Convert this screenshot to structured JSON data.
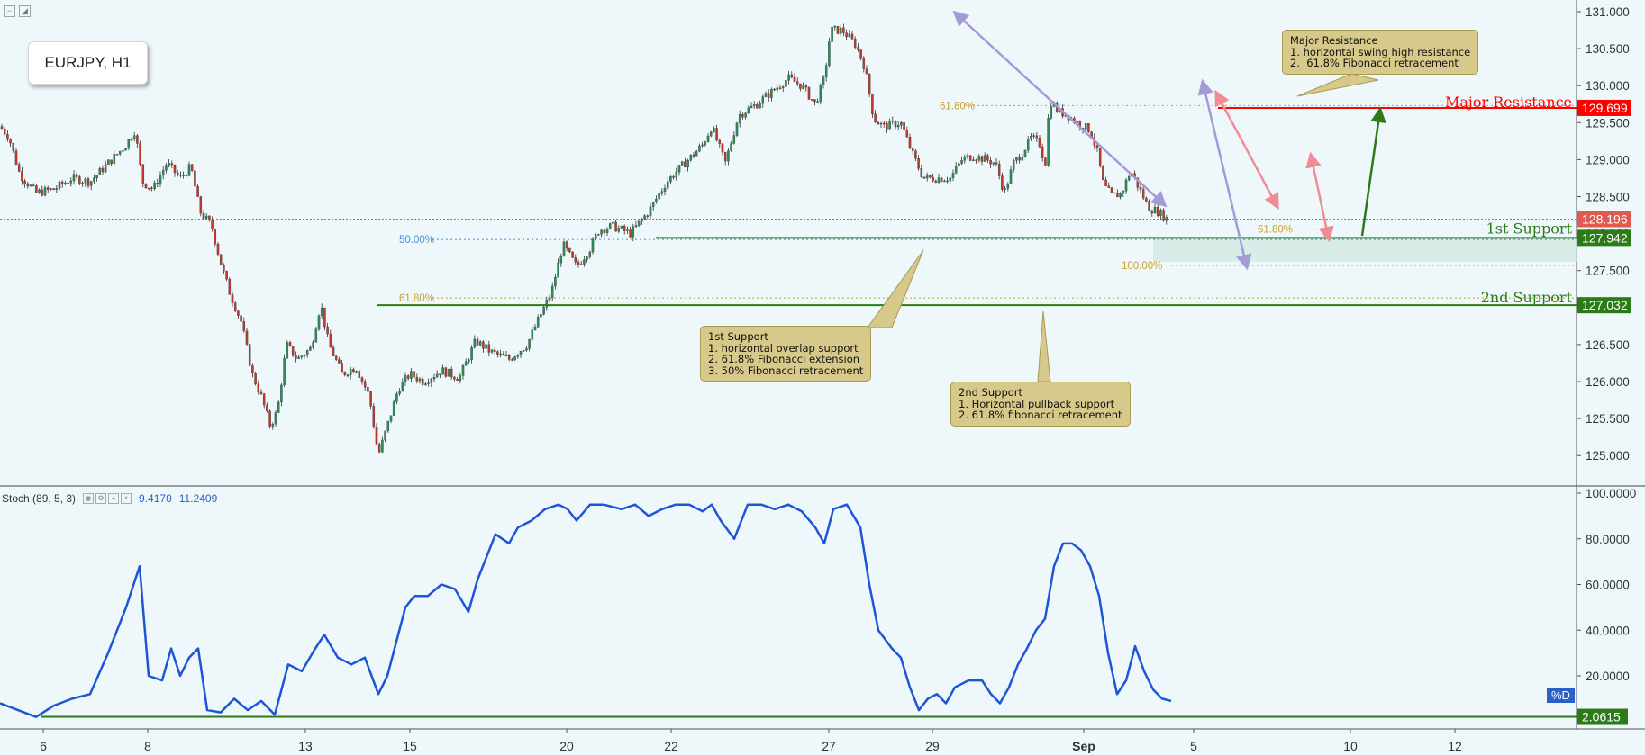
{
  "symbol": "EURJPY, H1",
  "chart_data": {
    "type": "candlestick",
    "price_axis": {
      "ticks": [
        "131.000",
        "130.500",
        "130.000",
        "129.500",
        "129.000",
        "128.500",
        "128.000",
        "127.500",
        "127.000",
        "126.500",
        "126.000",
        "125.500",
        "125.000"
      ],
      "ylim": [
        124.56,
        131.12
      ]
    },
    "x_ticks": [
      "6",
      "8",
      "13",
      "15",
      "20",
      "22",
      "27",
      "29",
      "Sep",
      "5",
      "10",
      "12"
    ],
    "close_path": [
      [
        0,
        129.45
      ],
      [
        10,
        129.3
      ],
      [
        22,
        128.8
      ],
      [
        40,
        128.55
      ],
      [
        60,
        128.6
      ],
      [
        80,
        128.75
      ],
      [
        100,
        128.7
      ],
      [
        120,
        128.95
      ],
      [
        140,
        129.2
      ],
      [
        150,
        129.4
      ],
      [
        158,
        128.7
      ],
      [
        170,
        128.6
      ],
      [
        185,
        128.95
      ],
      [
        200,
        128.75
      ],
      [
        212,
        128.9
      ],
      [
        222,
        128.3
      ],
      [
        235,
        128.1
      ],
      [
        245,
        127.6
      ],
      [
        255,
        127.2
      ],
      [
        268,
        126.8
      ],
      [
        280,
        126.1
      ],
      [
        290,
        125.8
      ],
      [
        300,
        125.4
      ],
      [
        308,
        125.6
      ],
      [
        318,
        126.5
      ],
      [
        330,
        126.3
      ],
      [
        345,
        126.45
      ],
      [
        356,
        127.05
      ],
      [
        365,
        126.5
      ],
      [
        380,
        126.1
      ],
      [
        395,
        126.2
      ],
      [
        410,
        125.8
      ],
      [
        420,
        125.0
      ],
      [
        430,
        125.4
      ],
      [
        442,
        125.9
      ],
      [
        455,
        126.1
      ],
      [
        470,
        126.0
      ],
      [
        490,
        126.15
      ],
      [
        510,
        126.05
      ],
      [
        528,
        126.55
      ],
      [
        545,
        126.4
      ],
      [
        565,
        126.3
      ],
      [
        585,
        126.5
      ],
      [
        600,
        126.9
      ],
      [
        612,
        127.2
      ],
      [
        625,
        127.85
      ],
      [
        640,
        127.55
      ],
      [
        655,
        127.8
      ],
      [
        665,
        128.05
      ],
      [
        680,
        128.1
      ],
      [
        700,
        128.0
      ],
      [
        720,
        128.3
      ],
      [
        740,
        128.7
      ],
      [
        760,
        128.95
      ],
      [
        780,
        129.2
      ],
      [
        790,
        129.45
      ],
      [
        805,
        128.95
      ],
      [
        820,
        129.6
      ],
      [
        840,
        129.75
      ],
      [
        860,
        129.95
      ],
      [
        875,
        130.1
      ],
      [
        890,
        130.0
      ],
      [
        905,
        129.75
      ],
      [
        915,
        130.1
      ],
      [
        922,
        130.75
      ],
      [
        935,
        130.75
      ],
      [
        950,
        130.55
      ],
      [
        960,
        130.25
      ],
      [
        970,
        129.55
      ],
      [
        980,
        129.45
      ],
      [
        1000,
        129.5
      ],
      [
        1012,
        129.1
      ],
      [
        1025,
        128.75
      ],
      [
        1040,
        128.75
      ],
      [
        1055,
        128.75
      ],
      [
        1068,
        129.0
      ],
      [
        1080,
        129.05
      ],
      [
        1095,
        129.0
      ],
      [
        1105,
        128.95
      ],
      [
        1115,
        128.55
      ],
      [
        1125,
        128.95
      ],
      [
        1135,
        129.1
      ],
      [
        1145,
        129.3
      ],
      [
        1155,
        129.2
      ],
      [
        1160,
        128.9
      ],
      [
        1165,
        129.8
      ],
      [
        1175,
        129.65
      ],
      [
        1185,
        129.6
      ],
      [
        1195,
        129.5
      ],
      [
        1210,
        129.4
      ],
      [
        1218,
        129.1
      ],
      [
        1225,
        128.65
      ],
      [
        1235,
        128.5
      ],
      [
        1245,
        128.55
      ],
      [
        1255,
        128.85
      ],
      [
        1265,
        128.6
      ],
      [
        1275,
        128.35
      ],
      [
        1285,
        128.3
      ],
      [
        1295,
        128.2
      ]
    ],
    "current_price": "128.196",
    "fibonacci_labels": [
      {
        "text": "50.00%",
        "price": 127.92,
        "color": "#4a8fd0"
      },
      {
        "text": "61.80%",
        "price": 127.13,
        "color": "#c9a030"
      },
      {
        "text": "61.80%",
        "price": 129.73,
        "color": "#c9a030"
      },
      {
        "text": "61.80%",
        "price": 128.06,
        "color": "#c9a030"
      },
      {
        "text": "100.00%",
        "price": 127.57,
        "color": "#c9a030"
      }
    ],
    "levels": [
      {
        "name": "Major Resistance",
        "price": "129.699",
        "color": "#ff0000"
      },
      {
        "name": "1st Support",
        "price": "127.942",
        "color": "#2d7a18"
      },
      {
        "name": "2nd Support",
        "price": "127.032",
        "color": "#2d7a18"
      }
    ],
    "stochastic": {
      "title": "Stoch (89, 5, 3)",
      "k_value": "9.4170",
      "d_value": "11.2409",
      "ticks": [
        "100.0000",
        "80.0000",
        "60.0000",
        "40.0000",
        "20.0000"
      ],
      "ylim": [
        0,
        100
      ],
      "series_label": "%D",
      "baseline": "2.0615",
      "values": [
        [
          0,
          8
        ],
        [
          20,
          5
        ],
        [
          40,
          2
        ],
        [
          60,
          7
        ],
        [
          80,
          10
        ],
        [
          100,
          12
        ],
        [
          120,
          30
        ],
        [
          140,
          50
        ],
        [
          155,
          68
        ],
        [
          165,
          20
        ],
        [
          180,
          18
        ],
        [
          190,
          32
        ],
        [
          200,
          20
        ],
        [
          210,
          28
        ],
        [
          220,
          32
        ],
        [
          230,
          5
        ],
        [
          245,
          4
        ],
        [
          260,
          10
        ],
        [
          275,
          5
        ],
        [
          290,
          9
        ],
        [
          305,
          3
        ],
        [
          320,
          25
        ],
        [
          335,
          22
        ],
        [
          350,
          32
        ],
        [
          360,
          38
        ],
        [
          375,
          28
        ],
        [
          390,
          25
        ],
        [
          405,
          28
        ],
        [
          420,
          12
        ],
        [
          430,
          20
        ],
        [
          440,
          35
        ],
        [
          450,
          50
        ],
        [
          460,
          55
        ],
        [
          475,
          55
        ],
        [
          490,
          60
        ],
        [
          505,
          58
        ],
        [
          520,
          48
        ],
        [
          530,
          62
        ],
        [
          540,
          72
        ],
        [
          550,
          82
        ],
        [
          565,
          78
        ],
        [
          575,
          85
        ],
        [
          590,
          88
        ],
        [
          605,
          93
        ],
        [
          620,
          95
        ],
        [
          630,
          93
        ],
        [
          640,
          88
        ],
        [
          655,
          95
        ],
        [
          670,
          95
        ],
        [
          690,
          93
        ],
        [
          705,
          95
        ],
        [
          720,
          90
        ],
        [
          735,
          93
        ],
        [
          750,
          95
        ],
        [
          765,
          95
        ],
        [
          780,
          92
        ],
        [
          790,
          95
        ],
        [
          800,
          88
        ],
        [
          815,
          80
        ],
        [
          830,
          95
        ],
        [
          845,
          95
        ],
        [
          860,
          93
        ],
        [
          875,
          95
        ],
        [
          890,
          92
        ],
        [
          905,
          85
        ],
        [
          915,
          78
        ],
        [
          925,
          93
        ],
        [
          940,
          95
        ],
        [
          955,
          85
        ],
        [
          965,
          60
        ],
        [
          975,
          40
        ],
        [
          990,
          32
        ],
        [
          1000,
          28
        ],
        [
          1010,
          15
        ],
        [
          1020,
          5
        ],
        [
          1030,
          10
        ],
        [
          1040,
          12
        ],
        [
          1050,
          8
        ],
        [
          1060,
          15
        ],
        [
          1075,
          18
        ],
        [
          1090,
          18
        ],
        [
          1100,
          12
        ],
        [
          1110,
          8
        ],
        [
          1120,
          15
        ],
        [
          1130,
          25
        ],
        [
          1140,
          32
        ],
        [
          1150,
          40
        ],
        [
          1160,
          45
        ],
        [
          1170,
          68
        ],
        [
          1180,
          78
        ],
        [
          1190,
          78
        ],
        [
          1200,
          75
        ],
        [
          1210,
          68
        ],
        [
          1220,
          55
        ],
        [
          1230,
          30
        ],
        [
          1240,
          12
        ],
        [
          1250,
          18
        ],
        [
          1260,
          33
        ],
        [
          1270,
          22
        ],
        [
          1280,
          14
        ],
        [
          1290,
          10
        ],
        [
          1300,
          9
        ]
      ]
    }
  },
  "callouts": {
    "major": "Major Resistance\n1. horizontal swing high resistance\n2.  61.8% Fibonacci retracement",
    "first": "1st Support\n1. horizontal overlap support\n2. 61.8% Fibonacci extension\n3. 50% Fibonacci retracement",
    "second": "2nd Support\n1. Horizontal pullback support\n2. 61.8% fibonacci retracement"
  },
  "colors": {
    "background": "#eef8fb",
    "up_candle": "#2e8b57",
    "down_candle": "#c0392b",
    "stoch_line": "#1e55d6",
    "resistance": "#ff0000",
    "support": "#2d7a18",
    "current_price_badge": "#e05a4f"
  }
}
